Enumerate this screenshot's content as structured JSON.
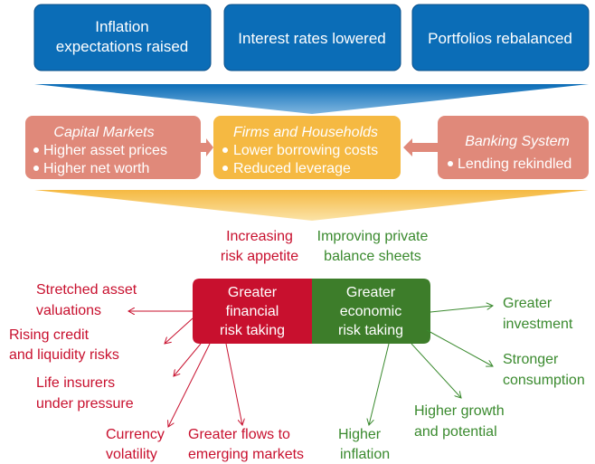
{
  "top_boxes": [
    {
      "lines": [
        "Inflation",
        "expectations raised"
      ]
    },
    {
      "lines": [
        "Interest rates lowered"
      ]
    },
    {
      "lines": [
        "Portfolios rebalanced"
      ]
    }
  ],
  "middle": {
    "capital_markets": {
      "title": "Capital Markets",
      "items": [
        "Higher asset prices",
        "Higher net worth"
      ]
    },
    "firms_households": {
      "title": "Firms and Households",
      "items": [
        "Lower borrowing costs",
        "Reduced leverage"
      ]
    },
    "banking_system": {
      "title": "Banking System",
      "items": [
        "Lending rekindled"
      ]
    }
  },
  "channels": {
    "risk": {
      "lines": [
        "Increasing",
        "risk appetite"
      ]
    },
    "balance": {
      "lines": [
        "Improving private",
        "balance sheets"
      ]
    }
  },
  "center": {
    "financial": {
      "lines": [
        "Greater",
        "financial",
        "risk taking"
      ]
    },
    "economic": {
      "lines": [
        "Greater",
        "economic",
        "risk taking"
      ]
    }
  },
  "financial_outcomes": [
    {
      "lines": [
        "Stretched asset",
        "valuations"
      ]
    },
    {
      "lines": [
        "Rising credit",
        "and liquidity risks"
      ]
    },
    {
      "lines": [
        "Life insurers",
        "under pressure"
      ]
    },
    {
      "lines": [
        "Currency",
        "volatility"
      ]
    },
    {
      "lines": [
        "Greater flows to",
        "emerging markets"
      ]
    }
  ],
  "economic_outcomes": [
    {
      "lines": [
        "Greater",
        "investment"
      ]
    },
    {
      "lines": [
        "Stronger",
        "consumption"
      ]
    },
    {
      "lines": [
        "Higher growth",
        "and potential"
      ]
    },
    {
      "lines": [
        "Higher",
        "inflation"
      ]
    }
  ]
}
